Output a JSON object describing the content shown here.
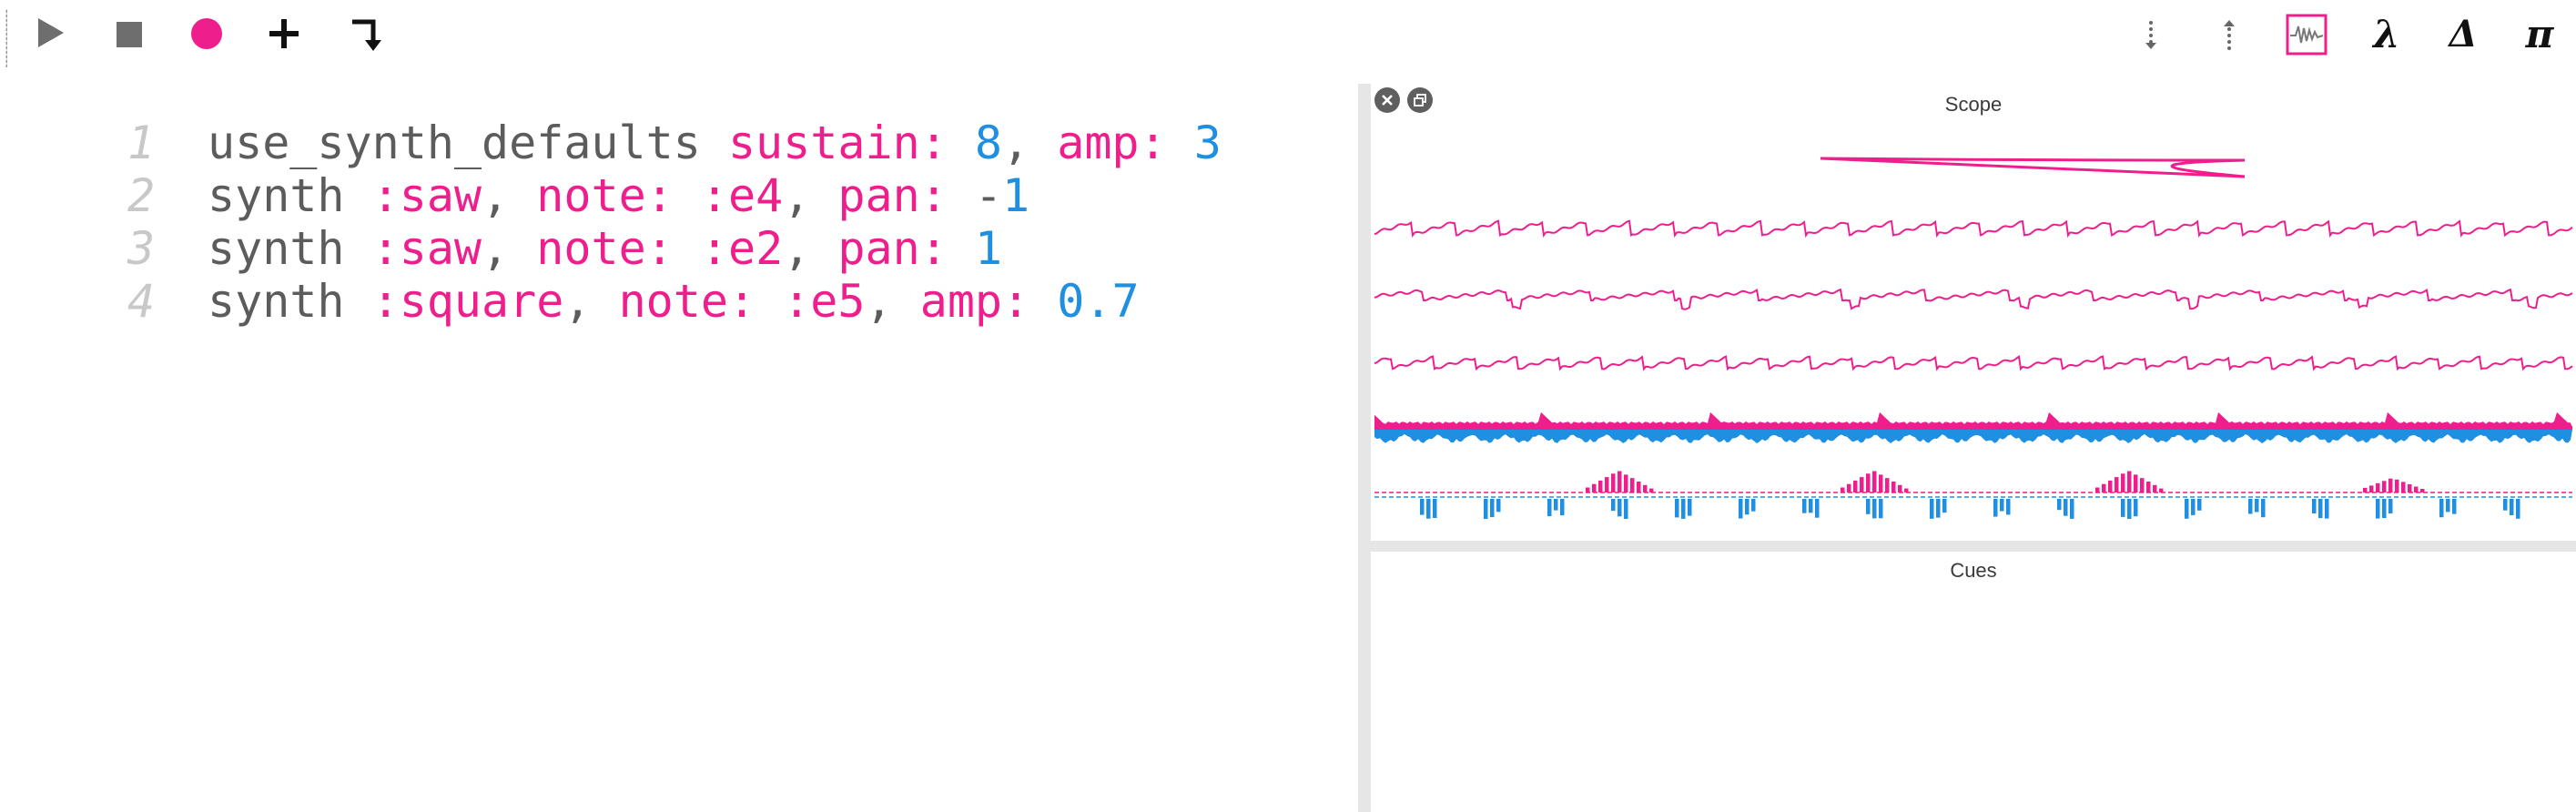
{
  "toolbar": {
    "left": [
      {
        "name": "run-button",
        "icon": "play-icon"
      },
      {
        "name": "stop-button",
        "icon": "stop-icon"
      },
      {
        "name": "record-button",
        "icon": "record-icon"
      },
      {
        "name": "add-button",
        "icon": "plus-icon"
      },
      {
        "name": "jump-button",
        "icon": "jump-icon"
      }
    ],
    "right": {
      "scroll_down_icon": "dotted-arrow-down-icon",
      "scroll_up_icon": "dotted-arrow-up-icon",
      "scope_icon": "scope-wave-icon",
      "lambda_label": "λ",
      "delta_label": "Δ",
      "pi_label": "π"
    }
  },
  "editor": {
    "lines": [
      {
        "num": "1",
        "tokens": [
          [
            "use_synth_defaults ",
            "plain"
          ],
          [
            "sustain: ",
            "key"
          ],
          [
            "8",
            "num"
          ],
          [
            ", ",
            "plain"
          ],
          [
            "amp: ",
            "key"
          ],
          [
            "3",
            "num"
          ]
        ]
      },
      {
        "num": "2",
        "tokens": [
          [
            "synth ",
            "plain"
          ],
          [
            ":saw",
            "key"
          ],
          [
            ", ",
            "plain"
          ],
          [
            "note: ",
            "key"
          ],
          [
            ":e4",
            "key"
          ],
          [
            ", ",
            "plain"
          ],
          [
            "pan: ",
            "key"
          ],
          [
            "-",
            "plain"
          ],
          [
            "1",
            "num"
          ]
        ]
      },
      {
        "num": "3",
        "tokens": [
          [
            "synth ",
            "plain"
          ],
          [
            ":saw",
            "key"
          ],
          [
            ", ",
            "plain"
          ],
          [
            "note: ",
            "key"
          ],
          [
            ":e2",
            "key"
          ],
          [
            ", ",
            "plain"
          ],
          [
            "pan: ",
            "key"
          ],
          [
            "1",
            "num"
          ]
        ]
      },
      {
        "num": "4",
        "tokens": [
          [
            "synth ",
            "plain"
          ],
          [
            ":square",
            "key"
          ],
          [
            ", ",
            "plain"
          ],
          [
            "note: ",
            "key"
          ],
          [
            ":e5",
            "key"
          ],
          [
            ", ",
            "plain"
          ],
          [
            "amp: ",
            "key"
          ],
          [
            "0.7",
            "num"
          ]
        ]
      }
    ]
  },
  "scope": {
    "title": "Scope",
    "close_icon": "close-icon",
    "detach_icon": "window-detach-icon"
  },
  "cues": {
    "title": "Cues"
  },
  "colors": {
    "accent": "#ee1f8d",
    "number": "#1e8fe1",
    "text": "#5c5c5c",
    "line_number": "#c8c8c8",
    "icon_dark": "#222222",
    "icon_gray": "#6e6e6e",
    "divider": "#e6e6e6"
  }
}
